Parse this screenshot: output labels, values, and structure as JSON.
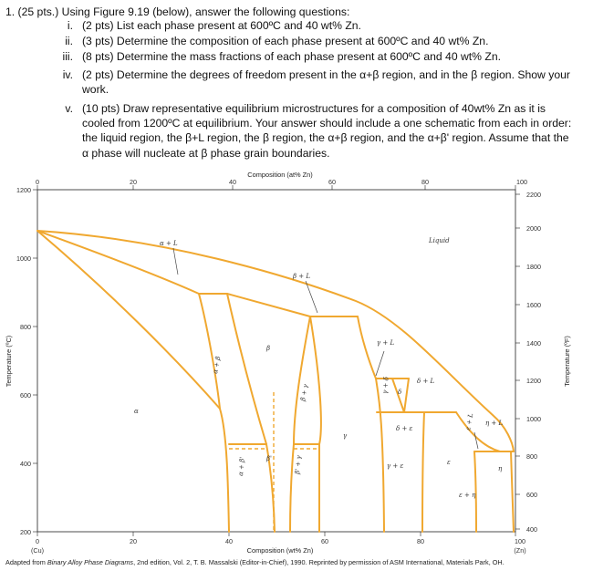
{
  "question": {
    "title": "1.  (25 pts.) Using Figure 9.19 (below), answer the following questions:",
    "items": [
      {
        "num": "i.",
        "text": "(2 pts) List each phase present at 600ºC and 40 wt% Zn."
      },
      {
        "num": "ii.",
        "text": "(3 pts) Determine the composition of each phase present at 600ºC and 40 wt% Zn."
      },
      {
        "num": "iii.",
        "text": "(8 pts) Determine the mass fractions of each phase present at 600ºC and 40 wt% Zn."
      },
      {
        "num": "iv.",
        "text": "(2 pts) Determine the degrees of freedom present in the α+β region, and in the β region. Show your work."
      },
      {
        "num": "v.",
        "text": "(10 pts) Draw representative equilibrium microstructures for a composition of 40wt% Zn as it is cooled from 1200ºC at equilibrium. Your answer should include a one schematic from each in order: the liquid region, the β+L region, the β region, the α+β region, and the α+β' region. Assume that the α phase will nucleate at β phase grain boundaries."
      }
    ]
  },
  "figure": {
    "top_axis_title": "Composition (at% Zn)",
    "bottom_axis_title": "Composition (wt% Zn)",
    "left_axis_title": "Temperature (ºC)",
    "right_axis_title": "Temperature (ºF)",
    "top_ticks": [
      "0",
      "20",
      "40",
      "60",
      "80",
      "100"
    ],
    "bottom_ticks": [
      "0",
      "20",
      "40",
      "60",
      "80",
      "100"
    ],
    "left_ticks": [
      "1200",
      "1000",
      "800",
      "600",
      "400",
      "200"
    ],
    "right_ticks": [
      "2200",
      "2000",
      "1800",
      "1600",
      "1400",
      "1200",
      "1000",
      "800",
      "600",
      "400"
    ],
    "corner_left": "(Cu)",
    "corner_right": "(Zn)",
    "phase_labels": {
      "alpha_L": "α + L",
      "liquid": "Liquid",
      "beta_L": "β + L",
      "gamma_L": "γ + L",
      "alpha_beta": "α + β",
      "beta": "β",
      "beta_gamma": "β + γ",
      "gamma_delta": "γ + δ",
      "delta": "δ",
      "delta_L": "δ + L",
      "delta_eps": "δ + ε",
      "alpha": "α",
      "gamma": "γ",
      "eps_L": "ε + L",
      "eta_L": "η + L",
      "beta_prime": "β'",
      "gamma_eps": "γ + ε",
      "epsilon": "ε",
      "alpha_betap": "α + β'",
      "betap_gamma": "β' + γ",
      "eta": "η",
      "eps_eta": "ε + η"
    }
  },
  "caption": {
    "prefix": "Adapted from ",
    "source_title": "Binary Alloy Phase Diagrams",
    "suffix": ", 2nd edition, Vol. 2, T. B. Massalski (Editor-in-Chief), 1990. Reprinted by permission of ASM International, Materials Park, OH."
  }
}
